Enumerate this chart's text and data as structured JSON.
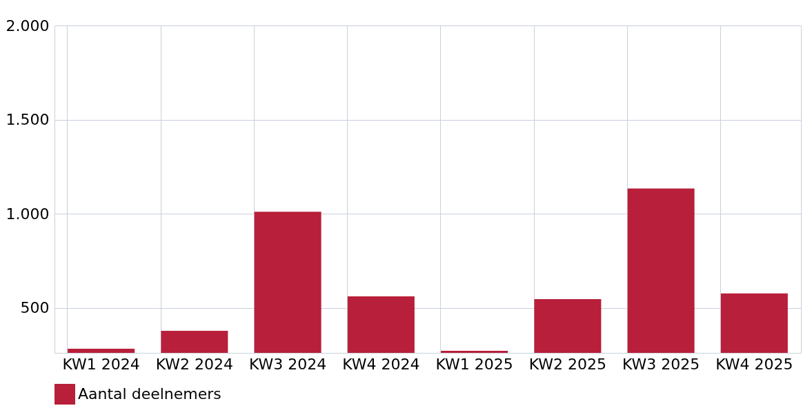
{
  "chart_data": {
    "type": "bar",
    "categories": [
      "KW1 2024",
      "KW2 2024",
      "KW3 2024",
      "KW4 2024",
      "KW1 2025",
      "KW2 2025",
      "KW3 2025",
      "KW4 2025"
    ],
    "series": [
      {
        "name": "Aantal deelnemers",
        "color": "#b81f3a",
        "values": [
          284,
          379,
          1011,
          562,
          273,
          547,
          1135,
          578
        ]
      }
    ],
    "ylim": [
      262,
      2000
    ],
    "yticks": [
      {
        "value": 500,
        "label": "500"
      },
      {
        "value": 1000,
        "label": "1.000"
      },
      {
        "value": 1500,
        "label": "1.500"
      },
      {
        "value": 2000,
        "label": "2.000"
      }
    ],
    "grid": true,
    "legend": "bottom"
  }
}
